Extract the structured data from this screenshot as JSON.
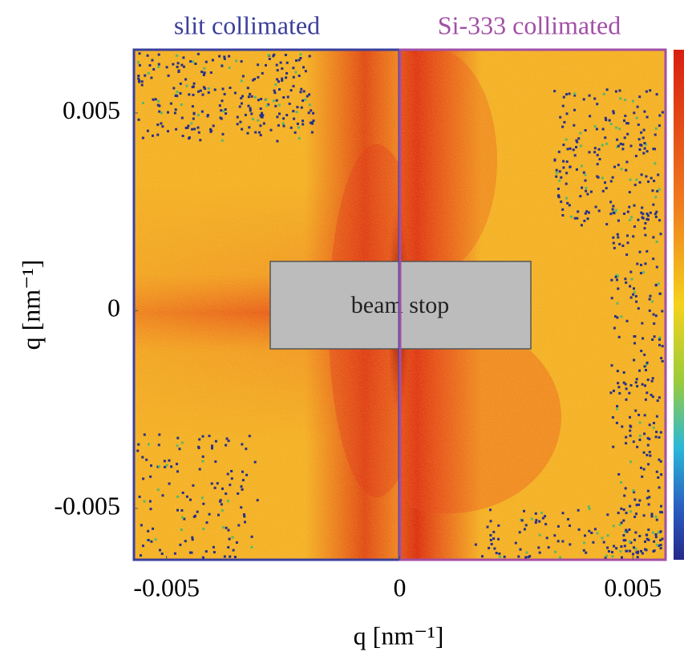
{
  "chart_data": {
    "type": "heatmap",
    "panels": [
      {
        "title": "slit collimated",
        "color": "#3b3f9c"
      },
      {
        "title": "Si-333 collimated",
        "color": "#a34fa6"
      }
    ],
    "annotation": "beam stop",
    "xlabel": "q [nm⁻¹]",
    "ylabel": "q [nm⁻¹]",
    "xlim": [
      -0.0057,
      0.0057
    ],
    "ylim": [
      -0.0063,
      0.0066
    ],
    "xticks": [
      -0.005,
      0,
      0.005
    ],
    "yticks": [
      -0.005,
      0,
      0.005
    ]
  }
}
